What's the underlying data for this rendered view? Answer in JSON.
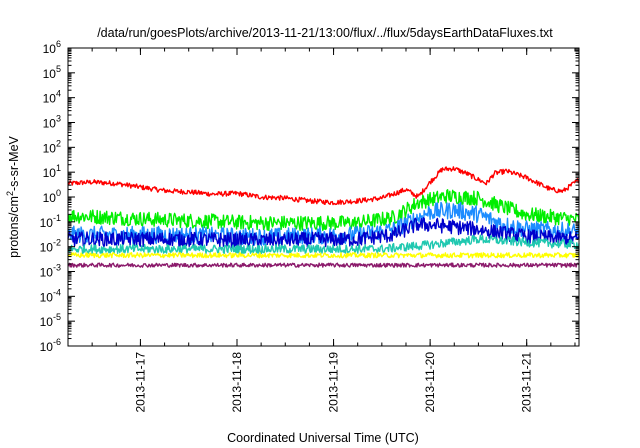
{
  "chart_data": {
    "type": "line",
    "title": "/data/run/goesPlots/archive/2013-11-21/13:00/flux/../flux/5daysEarthDataFluxes.txt",
    "xlabel": "Coordinated Universal Time (UTC)",
    "ylabel": {
      "pre": "protons/cm",
      "sup": "2",
      "post": "-s-sr-MeV"
    },
    "x_range": [
      "2013-11-16 06:00",
      "2013-11-21 13:00"
    ],
    "ylim": [
      1e-06,
      1000000.0
    ],
    "y_scale": "log",
    "grid": false,
    "legend": "none",
    "x_ticks": [
      "2013-11-17",
      "2013-11-18",
      "2013-11-19",
      "2013-11-20",
      "2013-11-21"
    ],
    "y_ticks": [
      {
        "base": "10",
        "exp": "-6"
      },
      {
        "base": "10",
        "exp": "-5"
      },
      {
        "base": "10",
        "exp": "-4"
      },
      {
        "base": "10",
        "exp": "-3"
      },
      {
        "base": "10",
        "exp": "-2"
      },
      {
        "base": "10",
        "exp": "-1"
      },
      {
        "base": "10",
        "exp": "0"
      },
      {
        "base": "10",
        "exp": "1"
      },
      {
        "base": "10",
        "exp": "2"
      },
      {
        "base": "10",
        "exp": "3"
      },
      {
        "base": "10",
        "exp": "4"
      },
      {
        "base": "10",
        "exp": "5"
      },
      {
        "base": "10",
        "exp": "6"
      }
    ],
    "series": [
      {
        "color": "#ff0000",
        "noise": 0.1,
        "points": [
          [
            "2013-11-16 06:00",
            3.5
          ],
          [
            "2013-11-16 12:00",
            4.0
          ],
          [
            "2013-11-16 18:00",
            3.5
          ],
          [
            "2013-11-17 00:00",
            2.5
          ],
          [
            "2013-11-17 06:00",
            1.8
          ],
          [
            "2013-11-17 12:00",
            1.6
          ],
          [
            "2013-11-17 18:00",
            1.3
          ],
          [
            "2013-11-18 00:00",
            1.4
          ],
          [
            "2013-11-18 06:00",
            1.0
          ],
          [
            "2013-11-18 12:00",
            0.9
          ],
          [
            "2013-11-18 18:00",
            0.7
          ],
          [
            "2013-11-19 00:00",
            0.6
          ],
          [
            "2013-11-19 06:00",
            0.7
          ],
          [
            "2013-11-19 12:00",
            0.9
          ],
          [
            "2013-11-19 18:00",
            2.0
          ],
          [
            "2013-11-19 21:00",
            1.0
          ],
          [
            "2013-11-20 00:00",
            4.0
          ],
          [
            "2013-11-20 03:00",
            13
          ],
          [
            "2013-11-20 06:00",
            14
          ],
          [
            "2013-11-20 09:00",
            9
          ],
          [
            "2013-11-20 12:00",
            5
          ],
          [
            "2013-11-20 14:00",
            3.5
          ],
          [
            "2013-11-20 16:00",
            9
          ],
          [
            "2013-11-20 19:00",
            11
          ],
          [
            "2013-11-21 00:00",
            6
          ],
          [
            "2013-11-21 06:00",
            2
          ],
          [
            "2013-11-21 09:00",
            1.7
          ],
          [
            "2013-11-21 13:00",
            5
          ]
        ]
      },
      {
        "color": "#00ee00",
        "noise": 0.3,
        "points": [
          [
            "2013-11-16 06:00",
            0.18
          ],
          [
            "2013-11-17 06:00",
            0.12
          ],
          [
            "2013-11-18 06:00",
            0.09
          ],
          [
            "2013-11-19 06:00",
            0.09
          ],
          [
            "2013-11-19 15:00",
            0.15
          ],
          [
            "2013-11-19 21:00",
            0.6
          ],
          [
            "2013-11-20 04:00",
            1.1
          ],
          [
            "2013-11-20 12:00",
            0.9
          ],
          [
            "2013-11-20 18:00",
            0.4
          ],
          [
            "2013-11-21 00:00",
            0.2
          ],
          [
            "2013-11-21 13:00",
            0.12
          ]
        ]
      },
      {
        "color": "#1c8cff",
        "noise": 0.35,
        "points": [
          [
            "2013-11-16 06:00",
            0.03
          ],
          [
            "2013-11-17 06:00",
            0.03
          ],
          [
            "2013-11-18 06:00",
            0.025
          ],
          [
            "2013-11-19 06:00",
            0.03
          ],
          [
            "2013-11-19 15:00",
            0.05
          ],
          [
            "2013-11-20 00:00",
            0.25
          ],
          [
            "2013-11-20 06:00",
            0.3
          ],
          [
            "2013-11-20 12:00",
            0.2
          ],
          [
            "2013-11-20 18:00",
            0.08
          ],
          [
            "2013-11-21 00:00",
            0.05
          ],
          [
            "2013-11-21 13:00",
            0.04
          ]
        ]
      },
      {
        "color": "#0000cc",
        "noise": 0.3,
        "points": [
          [
            "2013-11-16 06:00",
            0.02
          ],
          [
            "2013-11-17 06:00",
            0.02
          ],
          [
            "2013-11-18 06:00",
            0.018
          ],
          [
            "2013-11-19 06:00",
            0.02
          ],
          [
            "2013-11-19 15:00",
            0.03
          ],
          [
            "2013-11-19 21:00",
            0.08
          ],
          [
            "2013-11-20 03:00",
            0.07
          ],
          [
            "2013-11-20 12:00",
            0.05
          ],
          [
            "2013-11-20 18:00",
            0.035
          ],
          [
            "2013-11-21 00:00",
            0.025
          ],
          [
            "2013-11-21 13:00",
            0.02
          ]
        ]
      },
      {
        "color": "#20c8b0",
        "noise": 0.18,
        "points": [
          [
            "2013-11-16 06:00",
            0.008
          ],
          [
            "2013-11-19 12:00",
            0.008
          ],
          [
            "2013-11-20 00:00",
            0.012
          ],
          [
            "2013-11-20 12:00",
            0.02
          ],
          [
            "2013-11-21 00:00",
            0.015
          ],
          [
            "2013-11-21 13:00",
            0.012
          ]
        ]
      },
      {
        "color": "#ffff00",
        "noise": 0.1,
        "points": [
          [
            "2013-11-16 06:00",
            0.0045
          ],
          [
            "2013-11-21 13:00",
            0.0045
          ]
        ]
      },
      {
        "color": "#8b1a6b",
        "noise": 0.08,
        "points": [
          [
            "2013-11-16 06:00",
            0.0018
          ],
          [
            "2013-11-21 13:00",
            0.0018
          ]
        ]
      }
    ]
  }
}
